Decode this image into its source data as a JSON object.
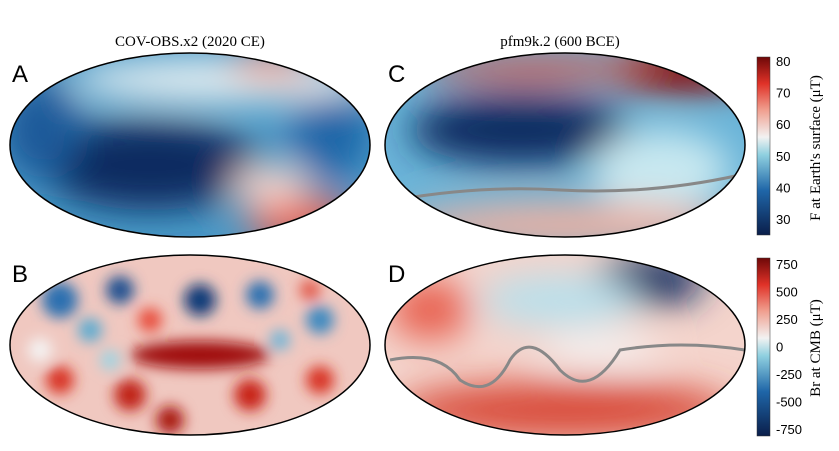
{
  "panels": [
    {
      "letter": "A",
      "title": "COV-OBS.x2 (2020 CE)"
    },
    {
      "letter": "B",
      "title": ""
    },
    {
      "letter": "C",
      "title": "pfm9k.2 (600 BCE)"
    },
    {
      "letter": "D",
      "title": ""
    }
  ],
  "colorbars": [
    {
      "label": "F at Earth's surface (μT)",
      "ticks": [
        "80",
        "70",
        "60",
        "50",
        "40",
        "30"
      ],
      "range": [
        25,
        80
      ]
    },
    {
      "label": "Br at CMB (μT)",
      "ticks": [
        "750",
        "500",
        "250",
        "0",
        "-250",
        "-500",
        "-750"
      ],
      "range": [
        -800,
        800
      ]
    }
  ],
  "colors": {
    "low": "#0a1e4a",
    "mid": "#f4f4f4",
    "high": "#7a0a0a"
  }
}
